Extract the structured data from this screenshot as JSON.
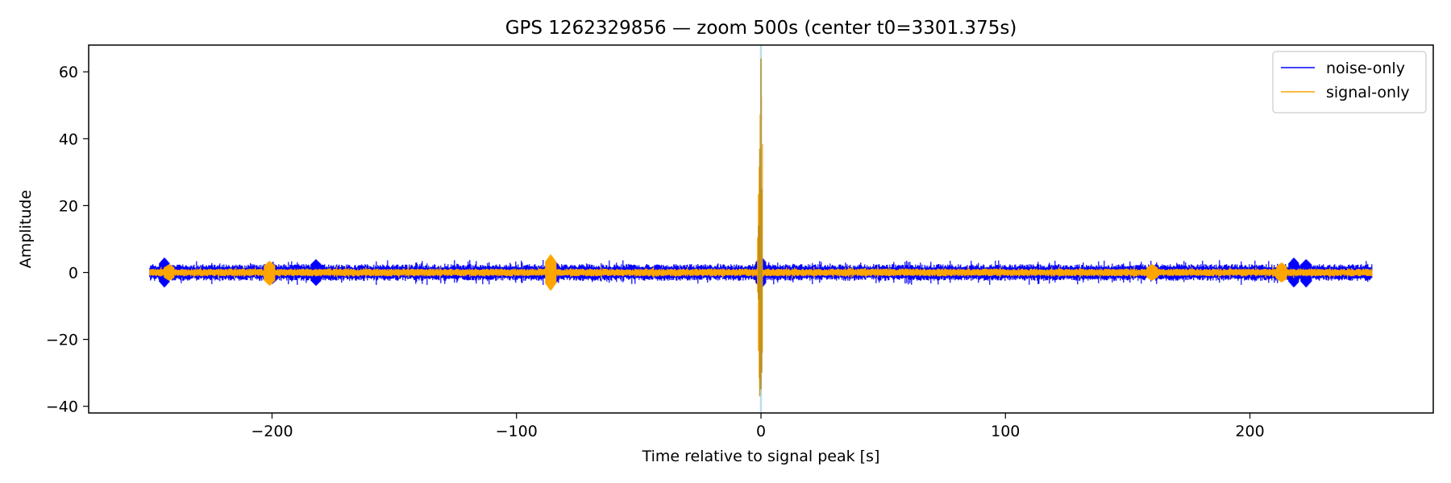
{
  "chart_data": {
    "type": "line",
    "title": "GPS 1262329856 — zoom 500s (center t0=3301.375s)",
    "xlabel": "Time relative to signal peak [s]",
    "ylabel": "Amplitude",
    "xlim": [
      -275,
      275
    ],
    "ylim": [
      -42,
      68
    ],
    "xticks": [
      -200,
      -100,
      0,
      100,
      200
    ],
    "xtick_labels": [
      "−200",
      "−100",
      "0",
      "100",
      "200"
    ],
    "yticks": [
      -40,
      -20,
      0,
      20,
      40,
      60
    ],
    "ytick_labels": [
      "−40",
      "−20",
      "0",
      "20",
      "40",
      "60"
    ],
    "grid": false,
    "legend_position": "top-right",
    "marker_line_x": 0,
    "marker_line_color": "#add8e6",
    "series": [
      {
        "name": "noise-only",
        "color": "#0000ff",
        "x_range": [
          -250,
          250
        ],
        "typical_amplitude": 2.5,
        "spikes": [
          {
            "x": -244,
            "min": -4.5,
            "max": 4.5
          },
          {
            "x": -200,
            "min": -3.5,
            "max": 3.0
          },
          {
            "x": -182,
            "min": -4.0,
            "max": 4.0
          },
          {
            "x": -85,
            "min": -4.0,
            "max": 4.0
          },
          {
            "x": 0,
            "min": -5.0,
            "max": 5.0
          },
          {
            "x": 218,
            "min": -4.5,
            "max": 4.5
          },
          {
            "x": 223,
            "min": -4.5,
            "max": 4.0
          }
        ]
      },
      {
        "name": "signal-only",
        "color": "#ffa500",
        "x_range": [
          -250,
          250
        ],
        "typical_amplitude": 1.2,
        "spikes": [
          {
            "x": -242,
            "min": -2.5,
            "max": 2.5
          },
          {
            "x": -201,
            "min": -4.0,
            "max": 3.5
          },
          {
            "x": -86,
            "min": -5.5,
            "max": 5.5
          },
          {
            "x": -1,
            "min": -8.0,
            "max": 14.0
          },
          {
            "x": -0.5,
            "min": -37.0,
            "max": 37.0
          },
          {
            "x": 0,
            "min": -35.0,
            "max": 64.0
          },
          {
            "x": 0.3,
            "min": -30.0,
            "max": 25.0
          },
          {
            "x": 160,
            "min": -2.5,
            "max": 2.5
          },
          {
            "x": 213,
            "min": -3.0,
            "max": 3.0
          }
        ]
      }
    ]
  }
}
